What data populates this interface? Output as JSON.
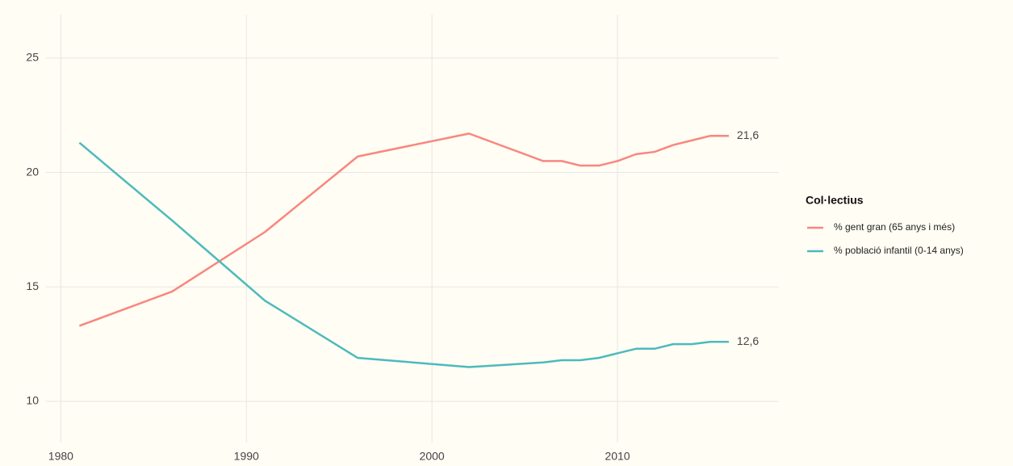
{
  "chart_data": {
    "type": "line",
    "x": [
      1981,
      1986,
      1991,
      1996,
      2002,
      2006,
      2007,
      2008,
      2009,
      2010,
      2011,
      2012,
      2013,
      2014,
      2015,
      2016
    ],
    "series": [
      {
        "name": "% gent gran (65 anys i més)",
        "color": "#f8877f",
        "end_label": "21,6",
        "values": [
          13.3,
          14.8,
          17.4,
          20.7,
          21.7,
          20.5,
          20.5,
          20.3,
          20.3,
          20.5,
          20.8,
          20.9,
          21.2,
          21.4,
          21.6,
          21.6
        ]
      },
      {
        "name": "% població infantil (0-14 anys)",
        "color": "#4dbabc",
        "end_label": "12,6",
        "values": [
          21.3,
          17.9,
          14.4,
          11.9,
          11.5,
          11.7,
          11.8,
          11.8,
          11.9,
          12.1,
          12.3,
          12.3,
          12.5,
          12.5,
          12.6,
          12.6
        ]
      }
    ],
    "legend_title": "Col·lectius",
    "xlim": [
      1979.2,
      2018.7
    ],
    "xticks": [
      1980,
      1990,
      2000,
      2010
    ],
    "ylim": [
      8.2,
      26.9
    ],
    "yticks": [
      10,
      15,
      20,
      25
    ],
    "grid": true
  }
}
